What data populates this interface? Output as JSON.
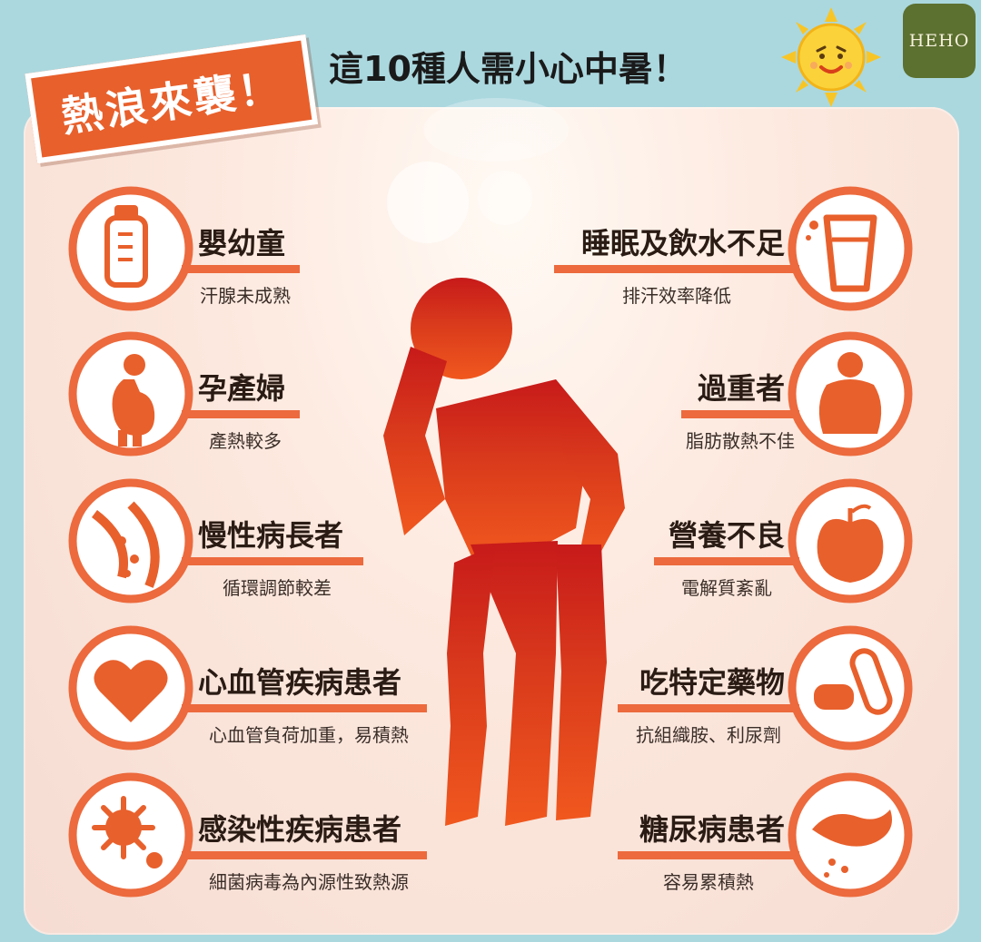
{
  "header": {
    "banner": "熱浪來襲！",
    "headline": "這10種人需小心中暑！",
    "logo": "HEHO"
  },
  "colors": {
    "accent": "#ec6a3d",
    "banner": "#e8602c",
    "background": "#abd8df",
    "logo": "#5c7030",
    "figure_top": "#c71a1a",
    "figure_bottom": "#f0581e"
  },
  "left": [
    {
      "title": "嬰幼童",
      "desc": "汗腺未成熟",
      "icon": "baby-bottle-icon"
    },
    {
      "title": "孕產婦",
      "desc": "產熱較多",
      "icon": "pregnant-woman-icon"
    },
    {
      "title": "慢性病長者",
      "desc": "循環調節較差",
      "icon": "blood-vessel-icon"
    },
    {
      "title": "心血管疾病患者",
      "desc": "心血管負荷加重，易積熱",
      "icon": "heart-icon"
    },
    {
      "title": "感染性疾病患者",
      "desc": "細菌病毒為內源性致熱源",
      "icon": "virus-icon"
    }
  ],
  "right": [
    {
      "title": "睡眠及飲水不足",
      "desc": "排汗效率降低",
      "icon": "water-glass-icon"
    },
    {
      "title": "過重者",
      "desc": "脂肪散熱不佳",
      "icon": "overweight-person-icon"
    },
    {
      "title": "營養不良",
      "desc": "電解質紊亂",
      "icon": "apple-icon"
    },
    {
      "title": "吃特定藥物",
      "desc": "抗組織胺、利尿劑",
      "icon": "pill-icon"
    },
    {
      "title": "糖尿病患者",
      "desc": "容易累積熱",
      "icon": "pancreas-icon"
    }
  ]
}
